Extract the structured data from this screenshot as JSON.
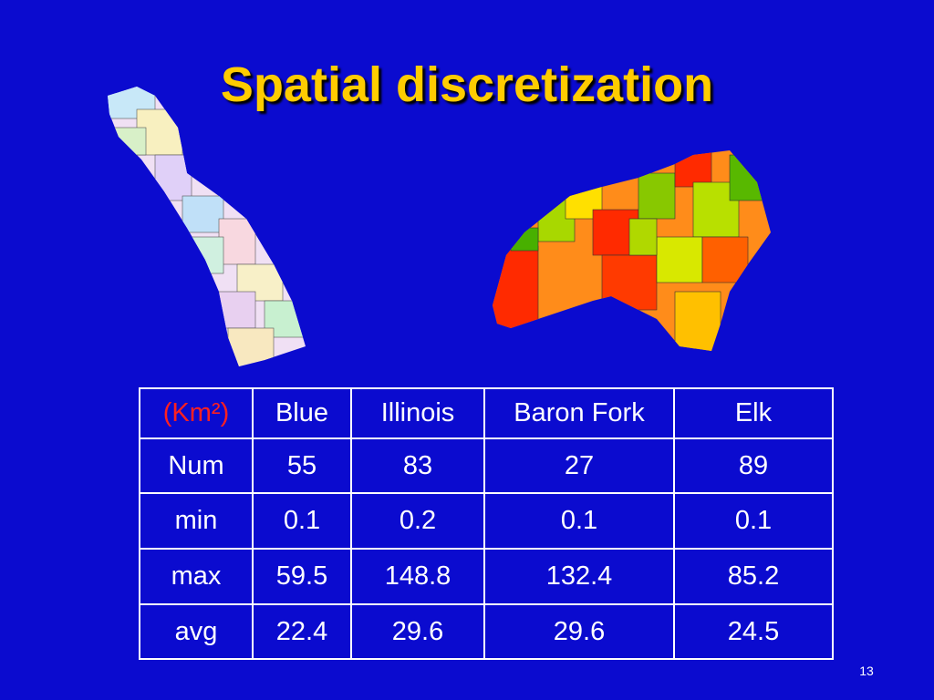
{
  "header": {
    "title": "Spatial discretization"
  },
  "table": {
    "rows": [
      [
        "(Km²)",
        "Blue",
        "Illinois",
        "Baron Fork",
        "Elk"
      ],
      [
        "Num",
        "55",
        "83",
        "27",
        "89"
      ],
      [
        "min",
        "0.1",
        "0.2",
        "0.1",
        "0.1"
      ],
      [
        "max",
        "59.5",
        "148.8",
        "132.4",
        "85.2"
      ],
      [
        "avg",
        "22.4",
        "29.6",
        "29.6",
        "24.5"
      ]
    ]
  },
  "footer": {
    "page_number": "13"
  }
}
